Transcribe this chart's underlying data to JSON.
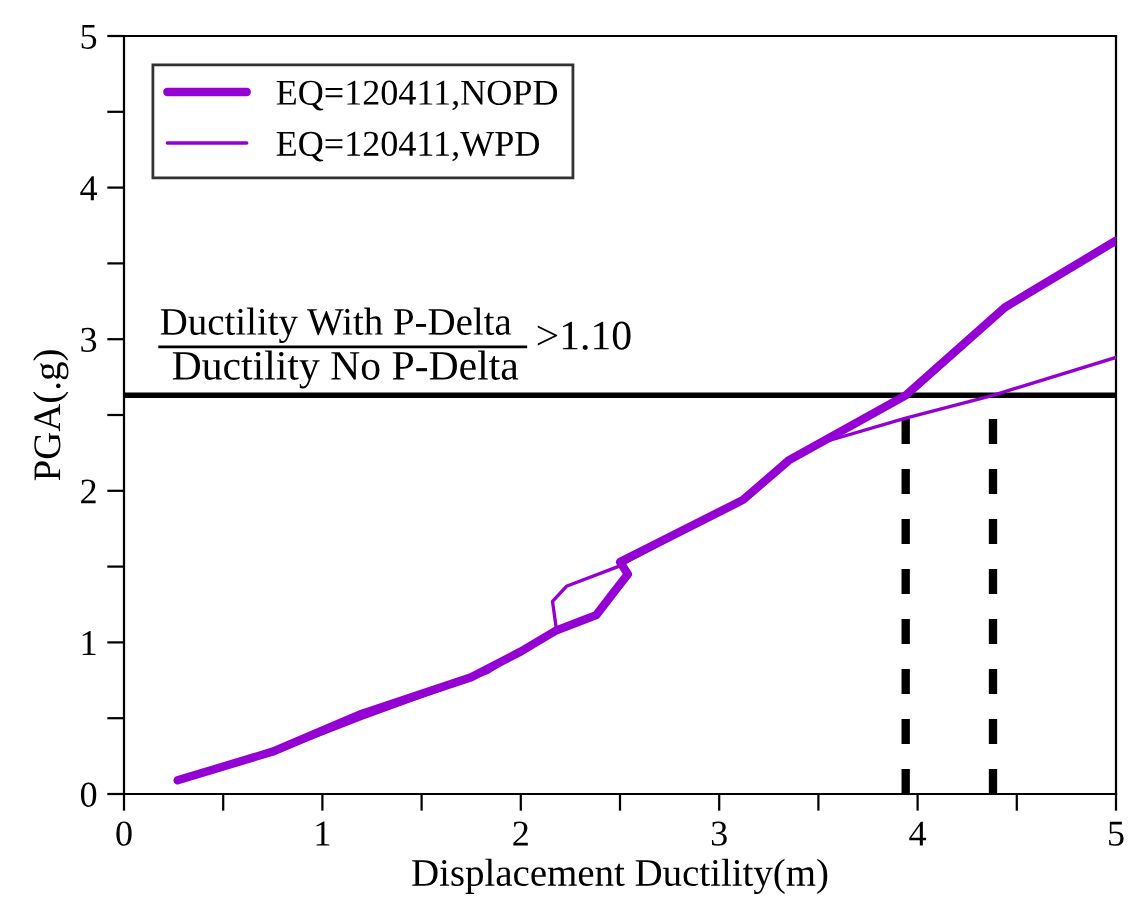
{
  "chart_data": {
    "type": "line",
    "xlabel": "Displacement Ductility(m)",
    "ylabel": "PGA(.g)",
    "xlim": [
      0,
      5
    ],
    "ylim": [
      0,
      5
    ],
    "xticks": [
      0,
      {
        "value": 0.5,
        "label": null
      },
      1,
      {
        "value": 1.5,
        "label": null
      },
      2,
      {
        "value": 2.5,
        "label": null
      },
      3,
      {
        "value": 3.5,
        "label": null
      },
      4,
      {
        "value": 4.5,
        "label": null
      },
      5
    ],
    "yticks": [
      0,
      {
        "value": 0.5,
        "label": null
      },
      1,
      {
        "value": 1.5,
        "label": null
      },
      2,
      {
        "value": 2.5,
        "label": null
      },
      3,
      {
        "value": 3.5,
        "label": null
      },
      4,
      {
        "value": 4.5,
        "label": null
      },
      5
    ],
    "grid": false,
    "legend": "top left",
    "marker": "none",
    "series": [
      {
        "name": "EQ=120411,NOPD",
        "color": "#9400d3",
        "line_style": "solid",
        "x": [
          0.27,
          0.75,
          1.2,
          1.75,
          2.0,
          2.18,
          2.38,
          2.48,
          2.54,
          2.5,
          3.12,
          3.35,
          3.94,
          4.44,
          5.0
        ],
        "values": [
          0.09,
          0.28,
          0.53,
          0.77,
          0.94,
          1.08,
          1.18,
          1.35,
          1.45,
          1.53,
          1.94,
          2.2,
          2.63,
          3.21,
          3.65
        ]
      },
      {
        "name": "EQ=120411,WPD",
        "color": "#9400d3",
        "line_style": "solid",
        "x": [
          0.27,
          0.75,
          1.2,
          1.83,
          2.0,
          2.18,
          2.16,
          2.23,
          2.49,
          3.12,
          3.35,
          3.55,
          3.94,
          4.38,
          5.0
        ],
        "values": [
          0.09,
          0.27,
          0.5,
          0.8,
          0.94,
          1.08,
          1.27,
          1.37,
          1.5,
          1.94,
          2.2,
          2.33,
          2.48,
          2.63,
          2.88
        ]
      },
      {
        "color": "#000000",
        "line_style": "dashed",
        "x": [
          3.94,
          3.94
        ],
        "values": [
          0,
          2.63
        ]
      },
      {
        "color": "#000000",
        "line_style": "dashed",
        "x": [
          4.38,
          4.38
        ],
        "values": [
          0,
          2.63
        ]
      }
    ],
    "ref_lines": [
      {
        "axis": "y",
        "value": 2.63,
        "color": "#000000",
        "line_style": "solid"
      }
    ],
    "annotations": [
      "Ductility With P-Delta",
      "Ductility No P-Delta",
      ">1.10"
    ]
  }
}
